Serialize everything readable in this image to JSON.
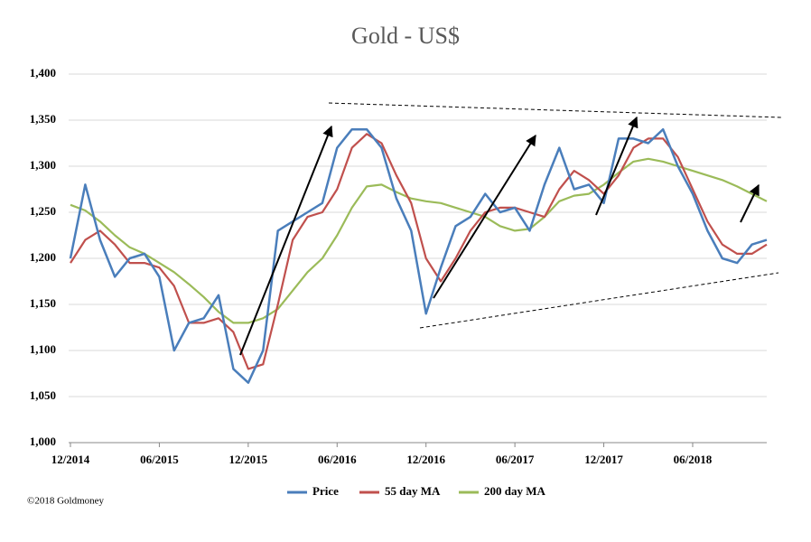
{
  "chart_data": {
    "type": "line",
    "title": "Gold - US$",
    "x": [
      "12/2014",
      "01/2015",
      "02/2015",
      "03/2015",
      "04/2015",
      "05/2015",
      "06/2015",
      "07/2015",
      "08/2015",
      "09/2015",
      "10/2015",
      "11/2015",
      "12/2015",
      "01/2016",
      "02/2016",
      "03/2016",
      "04/2016",
      "05/2016",
      "06/2016",
      "07/2016",
      "08/2016",
      "09/2016",
      "10/2016",
      "11/2016",
      "12/2016",
      "01/2017",
      "02/2017",
      "03/2017",
      "04/2017",
      "05/2017",
      "06/2017",
      "07/2017",
      "08/2017",
      "09/2017",
      "10/2017",
      "11/2017",
      "12/2017",
      "01/2018",
      "02/2018",
      "03/2018",
      "04/2018",
      "05/2018",
      "06/2018",
      "07/2018",
      "08/2018",
      "09/2018",
      "10/2018",
      "11/2018"
    ],
    "series": [
      {
        "name": "Price",
        "color": "#4a7ebb",
        "values": [
          1200,
          1280,
          1220,
          1180,
          1200,
          1205,
          1180,
          1100,
          1130,
          1135,
          1160,
          1080,
          1065,
          1100,
          1230,
          1240,
          1250,
          1260,
          1320,
          1340,
          1340,
          1320,
          1265,
          1230,
          1140,
          1190,
          1235,
          1245,
          1270,
          1250,
          1255,
          1230,
          1280,
          1320,
          1275,
          1280,
          1260,
          1330,
          1330,
          1325,
          1340,
          1300,
          1270,
          1230,
          1200,
          1195,
          1215,
          1220
        ]
      },
      {
        "name": "55 day MA",
        "color": "#c0504d",
        "values": [
          1195,
          1220,
          1230,
          1215,
          1195,
          1195,
          1190,
          1170,
          1130,
          1130,
          1135,
          1120,
          1080,
          1085,
          1150,
          1220,
          1245,
          1250,
          1275,
          1320,
          1335,
          1325,
          1290,
          1260,
          1200,
          1175,
          1200,
          1230,
          1250,
          1255,
          1255,
          1250,
          1245,
          1275,
          1295,
          1285,
          1270,
          1290,
          1320,
          1330,
          1330,
          1310,
          1275,
          1240,
          1215,
          1205,
          1205,
          1215
        ]
      },
      {
        "name": "200 day MA",
        "color": "#9bbb59",
        "values": [
          1258,
          1252,
          1240,
          1225,
          1212,
          1205,
          1195,
          1185,
          1172,
          1158,
          1142,
          1130,
          1130,
          1135,
          1145,
          1165,
          1185,
          1200,
          1225,
          1255,
          1278,
          1280,
          1272,
          1265,
          1262,
          1260,
          1255,
          1250,
          1245,
          1235,
          1230,
          1232,
          1245,
          1262,
          1268,
          1270,
          1280,
          1293,
          1305,
          1308,
          1305,
          1300,
          1295,
          1290,
          1285,
          1278,
          1270,
          1262
        ]
      }
    ],
    "ylim": [
      1000,
      1400
    ],
    "yticks": [
      {
        "value": 1000,
        "label": "1,000"
      },
      {
        "value": 1050,
        "label": "1,050"
      },
      {
        "value": 1100,
        "label": "1,100"
      },
      {
        "value": 1150,
        "label": "1,150"
      },
      {
        "value": 1200,
        "label": "1,200"
      },
      {
        "value": 1250,
        "label": "1,250"
      },
      {
        "value": 1300,
        "label": "1,300"
      },
      {
        "value": 1350,
        "label": "1,350"
      },
      {
        "value": 1400,
        "label": "1,400"
      }
    ],
    "grid": true,
    "legend": "bottom",
    "copyright": "©2018 Goldmoney"
  }
}
